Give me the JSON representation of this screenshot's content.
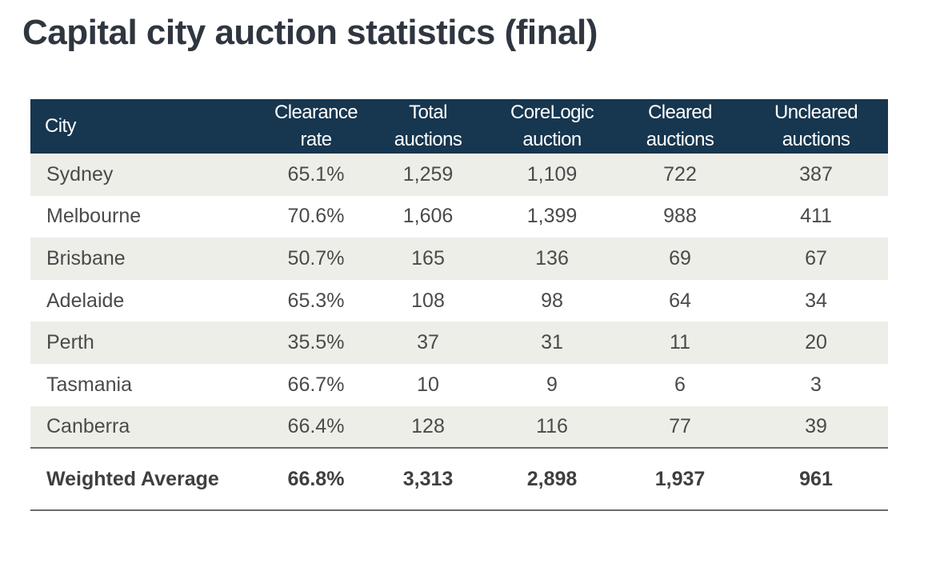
{
  "title": "Capital city auction statistics (final)",
  "table": {
    "headers": {
      "city": "City",
      "clearance_rate": [
        "Clearance",
        "rate"
      ],
      "total_auctions": [
        "Total",
        "auctions"
      ],
      "corelogic_auction": [
        "CoreLogic",
        "auction"
      ],
      "cleared_auctions": [
        "Cleared",
        "auctions"
      ],
      "uncleared_auctions": [
        "Uncleared",
        "auctions"
      ]
    },
    "rows": [
      {
        "city": "Sydney",
        "clearance_rate": "65.1%",
        "total_auctions": "1,259",
        "corelogic_auction": "1,109",
        "cleared_auctions": "722",
        "uncleared_auctions": "387"
      },
      {
        "city": "Melbourne",
        "clearance_rate": "70.6%",
        "total_auctions": "1,606",
        "corelogic_auction": "1,399",
        "cleared_auctions": "988",
        "uncleared_auctions": "411"
      },
      {
        "city": "Brisbane",
        "clearance_rate": "50.7%",
        "total_auctions": "165",
        "corelogic_auction": "136",
        "cleared_auctions": "69",
        "uncleared_auctions": "67"
      },
      {
        "city": "Adelaide",
        "clearance_rate": "65.3%",
        "total_auctions": "108",
        "corelogic_auction": "98",
        "cleared_auctions": "64",
        "uncleared_auctions": "34"
      },
      {
        "city": "Perth",
        "clearance_rate": "35.5%",
        "total_auctions": "37",
        "corelogic_auction": "31",
        "cleared_auctions": "11",
        "uncleared_auctions": "20"
      },
      {
        "city": "Tasmania",
        "clearance_rate": "66.7%",
        "total_auctions": "10",
        "corelogic_auction": "9",
        "cleared_auctions": "6",
        "uncleared_auctions": "3"
      },
      {
        "city": "Canberra",
        "clearance_rate": "66.4%",
        "total_auctions": "128",
        "corelogic_auction": "116",
        "cleared_auctions": "77",
        "uncleared_auctions": "39"
      }
    ],
    "summary": {
      "label": "Weighted Average",
      "clearance_rate": "66.8%",
      "total_auctions": "3,313",
      "corelogic_auction": "2,898",
      "cleared_auctions": "1,937",
      "uncleared_auctions": "961"
    }
  },
  "colors": {
    "header_bg": "#17364f",
    "row_shade": "#eeeee9",
    "title_text": "#2f3640"
  }
}
